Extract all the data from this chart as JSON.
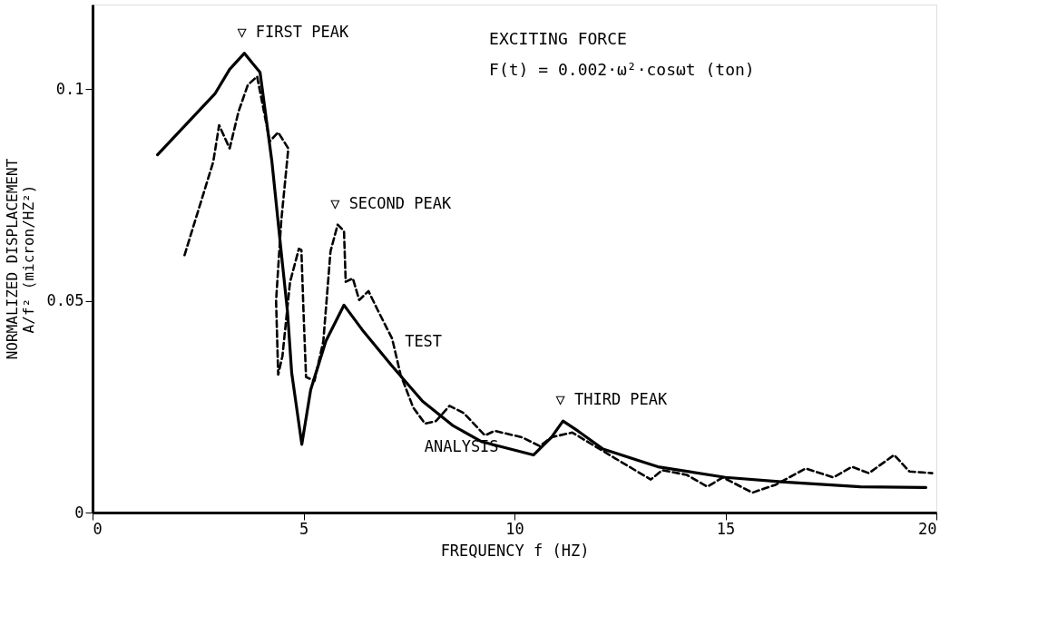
{
  "chart_data": {
    "type": "line",
    "xlabel": "FREQUENCY    f (HZ)",
    "ylabel": "NORMALIZED DISPLACEMENT\nA/f² (micron/HZ²)",
    "xlim": [
      0,
      20
    ],
    "ylim": [
      0,
      0.12
    ],
    "xticks": [
      0,
      5,
      10,
      15,
      20
    ],
    "yticks": [
      0,
      0.05,
      0.1
    ],
    "grid": false,
    "legend": false,
    "marker": "none",
    "series": [
      {
        "name": "ANALYSIS",
        "color": "#000000",
        "line_style": "solid",
        "x": [
          1.54,
          2.9,
          3.25,
          3.6,
          3.8,
          3.97,
          4.25,
          4.47,
          4.62,
          4.72,
          4.96,
          5.17,
          5.53,
          5.96,
          6.39,
          7.09,
          7.82,
          8.53,
          9.23,
          10.45,
          10.88,
          11.15,
          11.5,
          12.1,
          13.4,
          15.0,
          16.4,
          18.2,
          19.75
        ],
        "values": [
          0.0845,
          0.0989,
          0.1047,
          0.1085,
          0.106,
          0.104,
          0.083,
          0.0617,
          0.0475,
          0.033,
          0.0161,
          0.029,
          0.0405,
          0.049,
          0.0432,
          0.0347,
          0.0263,
          0.0206,
          0.0167,
          0.0136,
          0.0178,
          0.0216,
          0.0193,
          0.015,
          0.0108,
          0.0083,
          0.0072,
          0.0061,
          0.0059
        ]
      },
      {
        "name": "TEST",
        "color": "#000000",
        "line_style": "dashed",
        "x": [
          2.18,
          2.6,
          2.86,
          3.0,
          3.25,
          3.46,
          3.68,
          3.9,
          4.2,
          4.4,
          4.64,
          4.47,
          4.35,
          4.4,
          4.5,
          4.68,
          4.89,
          4.95,
          5.0,
          5.06,
          5.26,
          5.47,
          5.64,
          5.81,
          5.96,
          6.0,
          6.17,
          6.32,
          6.54,
          6.75,
          7.1,
          7.3,
          7.6,
          7.88,
          8.14,
          8.46,
          8.8,
          9.3,
          9.53,
          10.17,
          10.6,
          10.88,
          11.37,
          12.37,
          13.23,
          13.5,
          14.08,
          14.57,
          14.94,
          15.64,
          16.2,
          16.9,
          17.56,
          18.0,
          18.4,
          19.0,
          19.36,
          19.9
        ],
        "values": [
          0.0608,
          0.0744,
          0.0828,
          0.0915,
          0.086,
          0.0947,
          0.101,
          0.103,
          0.0877,
          0.0898,
          0.086,
          0.0686,
          0.05,
          0.0326,
          0.0369,
          0.0544,
          0.0623,
          0.062,
          0.0475,
          0.032,
          0.0311,
          0.0405,
          0.0617,
          0.068,
          0.0665,
          0.0545,
          0.0553,
          0.0502,
          0.0523,
          0.048,
          0.0411,
          0.0326,
          0.0248,
          0.021,
          0.0216,
          0.0252,
          0.0235,
          0.0182,
          0.0193,
          0.0178,
          0.0157,
          0.0178,
          0.0189,
          0.0129,
          0.0078,
          0.01,
          0.0089,
          0.0061,
          0.0083,
          0.0047,
          0.0066,
          0.0104,
          0.0083,
          0.0108,
          0.0093,
          0.0136,
          0.0097,
          0.0093
        ]
      }
    ],
    "annotations": [
      {
        "text": "▽ FIRST PEAK",
        "x": 3.6,
        "y": 0.1085
      },
      {
        "text": "▽ SECOND PEAK",
        "x": 5.81,
        "y": 0.068
      },
      {
        "text": "▽ THIRD PEAK",
        "x": 11.15,
        "y": 0.0216
      },
      "EXCITING FORCE",
      "F(t) = 0.002·ω²·cosωt (ton)"
    ]
  }
}
